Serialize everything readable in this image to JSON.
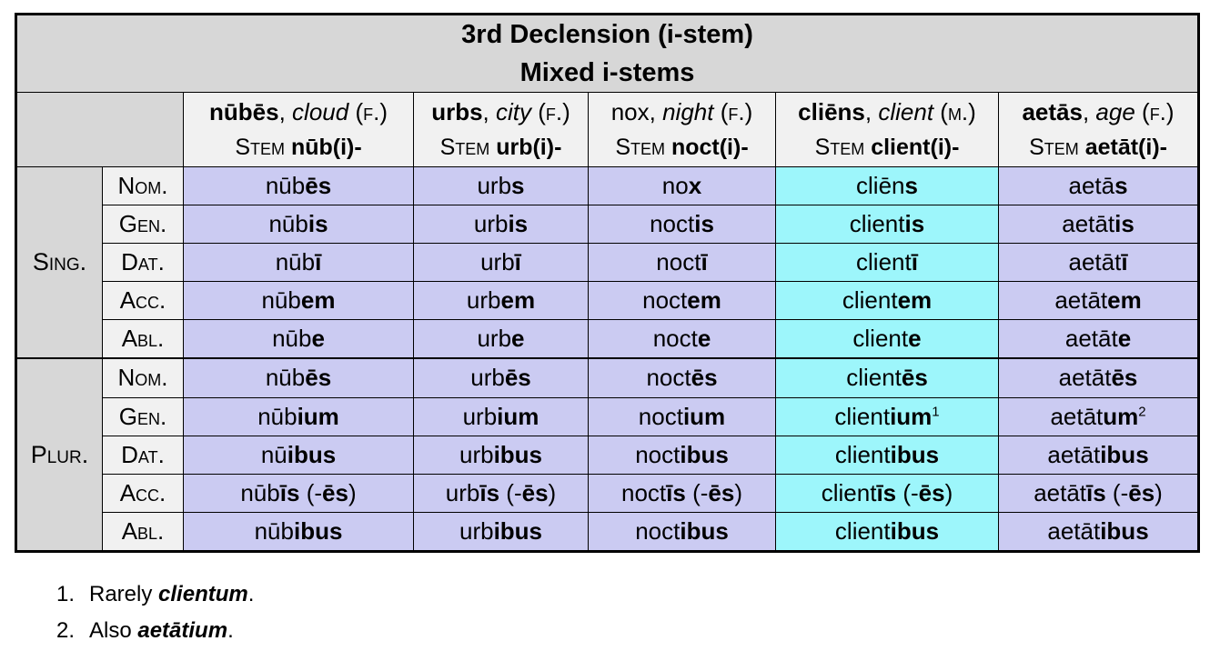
{
  "title": {
    "line1": "3rd Declension (i-stem)",
    "line2": "Mixed i-stems"
  },
  "separators": {
    "comma": ", ",
    "space": " "
  },
  "columns": [
    {
      "key": "nubes",
      "word": "nūbēs",
      "word_bold": true,
      "gloss": "cloud",
      "gender": "(f.)",
      "stem_label": "Stem",
      "stem": "nūb(i)-",
      "highlight": false
    },
    {
      "key": "urbs",
      "word": "urbs",
      "word_bold": true,
      "gloss": "city",
      "gender": "(f.)",
      "stem_label": "Stem",
      "stem": "urb(i)-",
      "highlight": false
    },
    {
      "key": "nox",
      "word": "nox",
      "word_bold": false,
      "gloss": "night",
      "gender": "(f.)",
      "stem_label": "Stem",
      "stem": "noct(i)-",
      "highlight": false
    },
    {
      "key": "cliens",
      "word": "cliēns",
      "word_bold": true,
      "gloss": "client",
      "gender": "(m.)",
      "stem_label": "Stem",
      "stem": "client(i)-",
      "highlight": true
    },
    {
      "key": "aetas",
      "word": "aetās",
      "word_bold": true,
      "gloss": "age",
      "gender": "(f.)",
      "stem_label": "Stem",
      "stem": "aetāt(i)-",
      "highlight": false
    }
  ],
  "row_groups": [
    {
      "label": "Sing.",
      "rows": [
        {
          "case": "Nom.",
          "cells": [
            [
              {
                "t": "nūb"
              },
              {
                "t": "ēs",
                "b": true
              }
            ],
            [
              {
                "t": "urb"
              },
              {
                "t": "s",
                "b": true
              }
            ],
            [
              {
                "t": "no"
              },
              {
                "t": "x",
                "b": true
              }
            ],
            [
              {
                "t": "cliēn"
              },
              {
                "t": "s",
                "b": true
              }
            ],
            [
              {
                "t": "aetā"
              },
              {
                "t": "s",
                "b": true
              }
            ]
          ]
        },
        {
          "case": "Gen.",
          "cells": [
            [
              {
                "t": "nūb"
              },
              {
                "t": "is",
                "b": true
              }
            ],
            [
              {
                "t": "urb"
              },
              {
                "t": "is",
                "b": true
              }
            ],
            [
              {
                "t": "noct"
              },
              {
                "t": "is",
                "b": true
              }
            ],
            [
              {
                "t": "client"
              },
              {
                "t": "is",
                "b": true
              }
            ],
            [
              {
                "t": "aetāt"
              },
              {
                "t": "is",
                "b": true
              }
            ]
          ]
        },
        {
          "case": "Dat.",
          "cells": [
            [
              {
                "t": "nūb"
              },
              {
                "t": "ī",
                "b": true
              }
            ],
            [
              {
                "t": "urb"
              },
              {
                "t": "ī",
                "b": true
              }
            ],
            [
              {
                "t": "noct"
              },
              {
                "t": "ī",
                "b": true
              }
            ],
            [
              {
                "t": "client"
              },
              {
                "t": "ī",
                "b": true
              }
            ],
            [
              {
                "t": "aetāt"
              },
              {
                "t": "ī",
                "b": true
              }
            ]
          ]
        },
        {
          "case": "Acc.",
          "cells": [
            [
              {
                "t": "nūb"
              },
              {
                "t": "em",
                "b": true
              }
            ],
            [
              {
                "t": "urb"
              },
              {
                "t": "em",
                "b": true
              }
            ],
            [
              {
                "t": "noct"
              },
              {
                "t": "em",
                "b": true
              }
            ],
            [
              {
                "t": "client"
              },
              {
                "t": "em",
                "b": true
              }
            ],
            [
              {
                "t": "aetāt"
              },
              {
                "t": "em",
                "b": true
              }
            ]
          ]
        },
        {
          "case": "Abl.",
          "cells": [
            [
              {
                "t": "nūb"
              },
              {
                "t": "e",
                "b": true
              }
            ],
            [
              {
                "t": "urb"
              },
              {
                "t": "e",
                "b": true
              }
            ],
            [
              {
                "t": "noct"
              },
              {
                "t": "e",
                "b": true
              }
            ],
            [
              {
                "t": "client"
              },
              {
                "t": "e",
                "b": true
              }
            ],
            [
              {
                "t": "aetāt"
              },
              {
                "t": "e",
                "b": true
              }
            ]
          ]
        }
      ]
    },
    {
      "label": "Plur.",
      "rows": [
        {
          "case": "Nom.",
          "cells": [
            [
              {
                "t": "nūb"
              },
              {
                "t": "ēs",
                "b": true
              }
            ],
            [
              {
                "t": "urb"
              },
              {
                "t": "ēs",
                "b": true
              }
            ],
            [
              {
                "t": "noct"
              },
              {
                "t": "ēs",
                "b": true
              }
            ],
            [
              {
                "t": "client"
              },
              {
                "t": "ēs",
                "b": true
              }
            ],
            [
              {
                "t": "aetāt"
              },
              {
                "t": "ēs",
                "b": true
              }
            ]
          ]
        },
        {
          "case": "Gen.",
          "cells": [
            [
              {
                "t": "nūb"
              },
              {
                "t": "ium",
                "b": true
              }
            ],
            [
              {
                "t": "urb"
              },
              {
                "t": "ium",
                "b": true
              }
            ],
            [
              {
                "t": "noct"
              },
              {
                "t": "ium",
                "b": true
              }
            ],
            [
              {
                "t": "client"
              },
              {
                "t": "ium",
                "b": true
              },
              {
                "t": "1",
                "sup": true
              }
            ],
            [
              {
                "t": "aetāt"
              },
              {
                "t": "um",
                "b": true
              },
              {
                "t": "2",
                "sup": true
              }
            ]
          ]
        },
        {
          "case": "Dat.",
          "cells": [
            [
              {
                "t": "nū"
              },
              {
                "t": "ibus",
                "b": true
              }
            ],
            [
              {
                "t": "urb"
              },
              {
                "t": "ibus",
                "b": true
              }
            ],
            [
              {
                "t": "noct"
              },
              {
                "t": "ibus",
                "b": true
              }
            ],
            [
              {
                "t": "client"
              },
              {
                "t": "ibus",
                "b": true
              }
            ],
            [
              {
                "t": "aetāt"
              },
              {
                "t": "ibus",
                "b": true
              }
            ]
          ]
        },
        {
          "case": "Acc.",
          "cells": [
            [
              {
                "t": "nūb"
              },
              {
                "t": "īs",
                "b": true
              },
              {
                "t": " (-"
              },
              {
                "t": "ēs",
                "b": true
              },
              {
                "t": ")"
              }
            ],
            [
              {
                "t": "urb"
              },
              {
                "t": "īs",
                "b": true
              },
              {
                "t": " (-"
              },
              {
                "t": "ēs",
                "b": true
              },
              {
                "t": ")"
              }
            ],
            [
              {
                "t": "noct"
              },
              {
                "t": "īs",
                "b": true
              },
              {
                "t": " (-"
              },
              {
                "t": "ēs",
                "b": true
              },
              {
                "t": ")"
              }
            ],
            [
              {
                "t": "client"
              },
              {
                "t": "īs",
                "b": true
              },
              {
                "t": " (-"
              },
              {
                "t": "ēs",
                "b": true
              },
              {
                "t": ")"
              }
            ],
            [
              {
                "t": "aetāt"
              },
              {
                "t": "īs",
                "b": true
              },
              {
                "t": " (-"
              },
              {
                "t": "ēs",
                "b": true
              },
              {
                "t": ")"
              }
            ]
          ]
        },
        {
          "case": "Abl.",
          "cells": [
            [
              {
                "t": "nūb"
              },
              {
                "t": "ibus",
                "b": true
              }
            ],
            [
              {
                "t": "urb"
              },
              {
                "t": "ibus",
                "b": true
              }
            ],
            [
              {
                "t": "noct"
              },
              {
                "t": "ibus",
                "b": true
              }
            ],
            [
              {
                "t": "client"
              },
              {
                "t": "ibus",
                "b": true
              }
            ],
            [
              {
                "t": "aetāt"
              },
              {
                "t": "ibus",
                "b": true
              }
            ]
          ]
        }
      ]
    }
  ],
  "footnotes": [
    {
      "number": "1.",
      "prefix": "Rarely ",
      "term": "clientum",
      "suffix": "."
    },
    {
      "number": "2.",
      "prefix": "Also ",
      "term": "aetātium",
      "suffix": "."
    }
  ],
  "colors": {
    "lavender": "#cbcbf2",
    "cyan": "#9df6fb",
    "header_gray": "#d7d7d7",
    "label_light": "#f1f1f1",
    "border": "#000000"
  }
}
